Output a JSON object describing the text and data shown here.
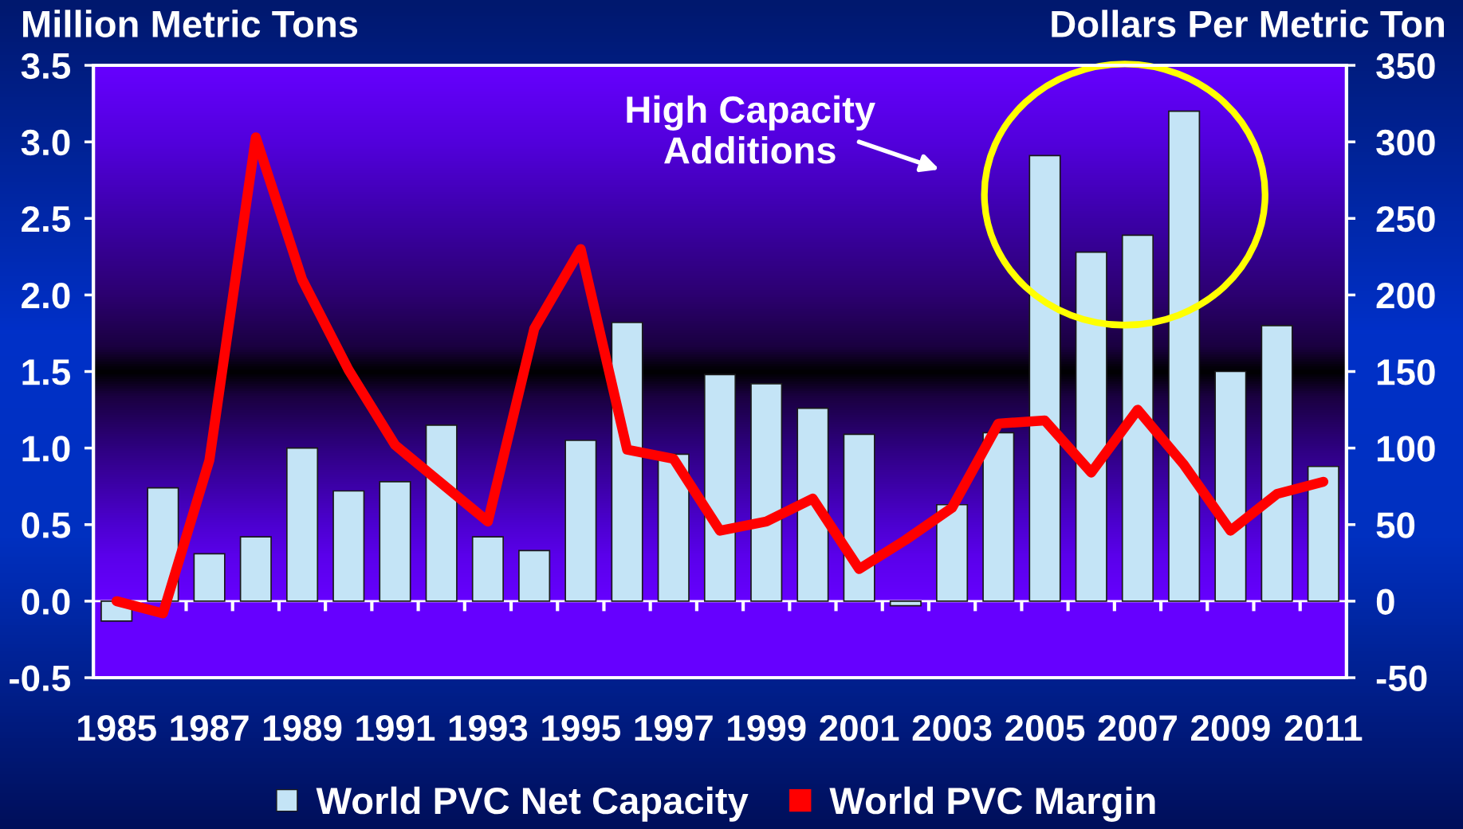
{
  "chart_data": {
    "type": "bar",
    "ylabel": "Million Metric Tons",
    "y2label": "Dollars Per Metric Ton",
    "categories": [
      "1985",
      null,
      "1987",
      null,
      "1989",
      null,
      "1991",
      null,
      "1993",
      null,
      "1995",
      null,
      "1997",
      null,
      "1999",
      null,
      "2001",
      null,
      "2003",
      null,
      "2005",
      null,
      "2007",
      null,
      "2009",
      null,
      "2011"
    ],
    "series": [
      {
        "name": "World PVC Net Capacity",
        "color": "#c4e4f6",
        "values": [
          -0.13,
          0.74,
          0.31,
          0.42,
          1.0,
          0.72,
          0.78,
          1.15,
          0.42,
          0.33,
          1.05,
          1.82,
          0.96,
          1.48,
          1.42,
          1.26,
          1.09,
          -0.03,
          0.63,
          1.1,
          2.91,
          2.28,
          2.39,
          3.2,
          1.5,
          1.8,
          0.88
        ]
      },
      {
        "name": "World PVC Margin",
        "type": "line",
        "axis": "y2",
        "color": "#ff0000",
        "values": [
          0,
          -8,
          92,
          303,
          210,
          151,
          102,
          77,
          52,
          178,
          230,
          99,
          93,
          46,
          52,
          67,
          21,
          40,
          61,
          116,
          118,
          84,
          125,
          89,
          46,
          70,
          78
        ]
      }
    ],
    "ylim": [
      -0.5,
      3.5
    ],
    "yticks": [
      -0.5,
      {
        "value": 0,
        "label": "0.0"
      },
      0.5,
      {
        "value": 1,
        "label": "1.0"
      },
      1.5,
      {
        "value": 2,
        "label": "2.0"
      },
      2.5,
      {
        "value": 3,
        "label": "3.0"
      },
      3.5
    ],
    "y2lim": [
      -50,
      350
    ],
    "y2ticks": [
      -50,
      0,
      50,
      100,
      150,
      200,
      250,
      300,
      350
    ],
    "ref_lines": [
      {
        "axis": "y",
        "value": 0,
        "color": "#ffffff"
      }
    ],
    "annotations": [
      "High Capacity\nAdditions"
    ],
    "line_style": "solid",
    "legend": "bottom"
  }
}
